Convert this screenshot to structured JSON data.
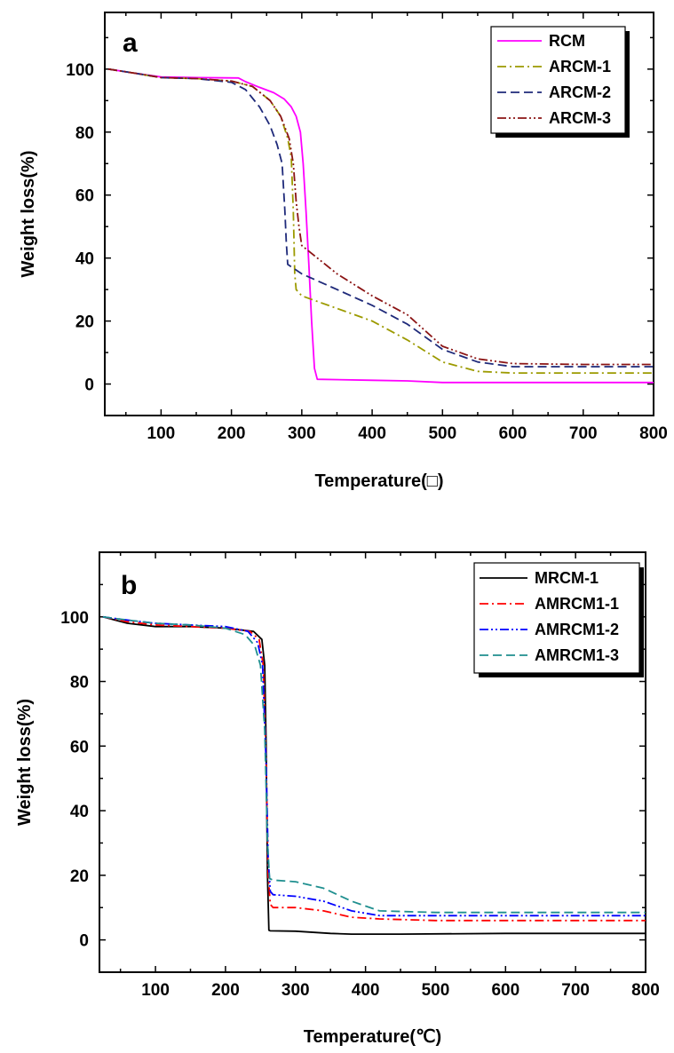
{
  "chart_data": [
    {
      "type": "line",
      "panel_label": "a",
      "xlabel": "Temperature(□)",
      "ylabel": "Weight loss(%)",
      "xlim": [
        20,
        800
      ],
      "ylim": [
        -10,
        118
      ],
      "xticks": [
        100,
        200,
        300,
        400,
        500,
        600,
        700,
        800
      ],
      "yticks": [
        0,
        20,
        40,
        60,
        80,
        100
      ],
      "grid": false,
      "legend_position": "top-right",
      "series": [
        {
          "name": "RCM",
          "color": "#ff00ff",
          "dash": "solid",
          "x": [
            25,
            60,
            100,
            150,
            210,
            220,
            240,
            260,
            275,
            285,
            292,
            298,
            302,
            306,
            310,
            314,
            318,
            322,
            400,
            450,
            500,
            600,
            700,
            800
          ],
          "y": [
            100,
            98.8,
            97.5,
            97.3,
            97.2,
            96,
            94.2,
            92.5,
            90.5,
            88,
            85,
            80,
            70,
            55,
            38,
            20,
            5,
            1.5,
            1.2,
            1.0,
            0.5,
            0.5,
            0.5,
            0.5
          ]
        },
        {
          "name": "ARCM-1",
          "color": "#9c9a00",
          "dash": "dashdot",
          "x": [
            25,
            60,
            100,
            150,
            200,
            230,
            255,
            270,
            280,
            285,
            288,
            290,
            292,
            300,
            350,
            400,
            450,
            500,
            550,
            600,
            700,
            800
          ],
          "y": [
            100,
            98.8,
            97.3,
            97.0,
            96.2,
            94.5,
            90,
            85,
            78,
            72,
            55,
            35,
            30,
            28,
            24,
            20,
            14,
            7,
            4,
            3.5,
            3.5,
            3.5
          ]
        },
        {
          "name": "ARCM-2",
          "color": "#1f2a7a",
          "dash": "dash",
          "x": [
            25,
            60,
            100,
            150,
            200,
            220,
            240,
            255,
            265,
            272,
            276,
            278,
            280,
            300,
            350,
            400,
            450,
            500,
            550,
            600,
            700,
            800
          ],
          "y": [
            100,
            98.8,
            97.3,
            97.0,
            95.8,
            93.5,
            88,
            82,
            76,
            70,
            55,
            45,
            38,
            35,
            30,
            25,
            19,
            11,
            7,
            5.5,
            5.5,
            5.5
          ]
        },
        {
          "name": "ARCM-3",
          "color": "#8b1414",
          "dash": "dashdotdot",
          "x": [
            25,
            60,
            100,
            150,
            200,
            230,
            255,
            270,
            282,
            288,
            292,
            296,
            300,
            350,
            400,
            450,
            500,
            550,
            600,
            700,
            800
          ],
          "y": [
            100,
            98.8,
            97.3,
            97.0,
            96.2,
            94.5,
            90,
            85,
            78,
            70,
            58,
            50,
            44,
            35,
            28,
            22,
            12,
            8,
            6.5,
            6.2,
            6.2
          ]
        }
      ]
    },
    {
      "type": "line",
      "panel_label": "b",
      "xlabel": "Temperature(℃)",
      "ylabel": "Weight loss(%)",
      "xlim": [
        20,
        800
      ],
      "ylim": [
        -10,
        120
      ],
      "xticks": [
        100,
        200,
        300,
        400,
        500,
        600,
        700,
        800
      ],
      "yticks": [
        0,
        20,
        40,
        60,
        80,
        100
      ],
      "grid": false,
      "legend_position": "top-right",
      "series": [
        {
          "name": "MRCM-1",
          "color": "#000000",
          "dash": "solid",
          "x": [
            25,
            60,
            100,
            150,
            200,
            240,
            252,
            256,
            258,
            260,
            262,
            264,
            300,
            350,
            380,
            450,
            600,
            800
          ],
          "y": [
            100,
            98,
            97,
            97,
            96.5,
            95.5,
            93,
            85,
            60,
            20,
            3,
            2.8,
            2.7,
            2.0,
            1.8,
            1.8,
            2.0,
            2.0
          ]
        },
        {
          "name": "AMRCM1-1",
          "color": "#ff0000",
          "dash": "dashdot",
          "x": [
            25,
            60,
            100,
            150,
            200,
            235,
            248,
            254,
            258,
            261,
            264,
            268,
            300,
            340,
            380,
            420,
            500,
            600,
            700,
            800
          ],
          "y": [
            100,
            98.5,
            97.5,
            97,
            96.5,
            95.5,
            93,
            85,
            55,
            20,
            11,
            10,
            10,
            9,
            7,
            6.5,
            6,
            6,
            6,
            6
          ]
        },
        {
          "name": "AMRCM1-2",
          "color": "#0000ff",
          "dash": "dashdotdot",
          "x": [
            25,
            60,
            100,
            150,
            200,
            232,
            246,
            253,
            258,
            261,
            264,
            268,
            300,
            340,
            380,
            420,
            500,
            600,
            700,
            800
          ],
          "y": [
            100,
            99,
            98,
            97.5,
            97,
            95.5,
            92,
            85,
            55,
            25,
            15,
            14,
            13.5,
            12,
            9,
            7.5,
            7.5,
            7.5,
            7.5,
            7.5
          ]
        },
        {
          "name": "AMRCM1-3",
          "color": "#1f8f8f",
          "dash": "dash",
          "x": [
            25,
            60,
            100,
            150,
            200,
            228,
            242,
            250,
            256,
            260,
            263,
            268,
            300,
            340,
            380,
            420,
            500,
            600,
            700,
            800
          ],
          "y": [
            100,
            99,
            98,
            97.5,
            96.5,
            94.5,
            91,
            85,
            65,
            30,
            19,
            18.5,
            18,
            16,
            12,
            9,
            8.5,
            8.5,
            8.5,
            8.5
          ]
        }
      ]
    }
  ]
}
